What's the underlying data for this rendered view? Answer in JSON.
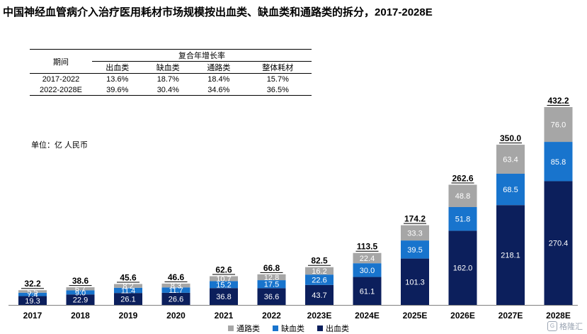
{
  "title": "中国神经血管病介入治疗医用耗材市场规模按出血类、缺血类和通路类的拆分，2017-2028E",
  "cagr_table": {
    "period_label": "期间",
    "group_label": "复合年增长率",
    "columns": [
      "出血类",
      "缺血类",
      "通路类",
      "整体耗材"
    ],
    "rows": [
      {
        "period": "2017-2022",
        "values": [
          "13.6%",
          "18.7%",
          "18.4%",
          "15.7%"
        ]
      },
      {
        "period": "2022-2028E",
        "values": [
          "39.6%",
          "30.4%",
          "34.6%",
          "36.5%"
        ]
      }
    ]
  },
  "unit": "单位：亿 人民币",
  "legend": [
    "通路类",
    "缺血类",
    "出血类"
  ],
  "watermark": "格隆汇",
  "colors": {
    "bleed": "#0c1f5c",
    "ischemic": "#1874cd",
    "access": "#a6a6a6"
  },
  "chart_data": {
    "type": "bar",
    "stacked": true,
    "categories": [
      "2017",
      "2018",
      "2019",
      "2020",
      "2021",
      "2022",
      "2023E",
      "2024E",
      "2025E",
      "2026E",
      "2027E",
      "2028E"
    ],
    "series": [
      {
        "name": "出血类",
        "values": [
          19.3,
          22.9,
          26.1,
          26.6,
          36.8,
          36.6,
          43.7,
          61.1,
          101.3,
          162.0,
          218.1,
          270.4
        ]
      },
      {
        "name": "缺血类",
        "values": [
          7.4,
          9.0,
          11.4,
          11.7,
          15.2,
          17.5,
          22.6,
          30.0,
          39.5,
          51.8,
          68.5,
          85.8
        ]
      },
      {
        "name": "通路类",
        "values": [
          5.5,
          6.7,
          8.2,
          8.3,
          10.7,
          12.8,
          16.2,
          22.4,
          33.3,
          48.8,
          63.4,
          76.0
        ]
      }
    ],
    "segment_labels": [
      [
        "19.3",
        "22.9",
        "26.1",
        "26.6",
        "36.8",
        "36.6",
        "43.7",
        "61.1",
        "101.3",
        "162.0",
        "218.1",
        "270.4"
      ],
      [
        "7.4",
        "9.0",
        "11.4",
        "11.7",
        "15.2",
        "17.5",
        "22.6",
        "30.0",
        "39.5",
        "51.8",
        "68.5",
        "85.8"
      ],
      [
        "5.5",
        "6.7",
        "8.2",
        "8.3",
        "10.7",
        "12.8",
        "16.2",
        "22.4",
        "33.3",
        "48.8",
        "63.4",
        "76.0"
      ]
    ],
    "totals": [
      "32.2",
      "38.6",
      "45.6",
      "46.6",
      "62.6",
      "66.8",
      "82.5",
      "113.5",
      "174.2",
      "262.6",
      "350.0",
      "432.2"
    ],
    "ylim": [
      0,
      432.2
    ]
  }
}
